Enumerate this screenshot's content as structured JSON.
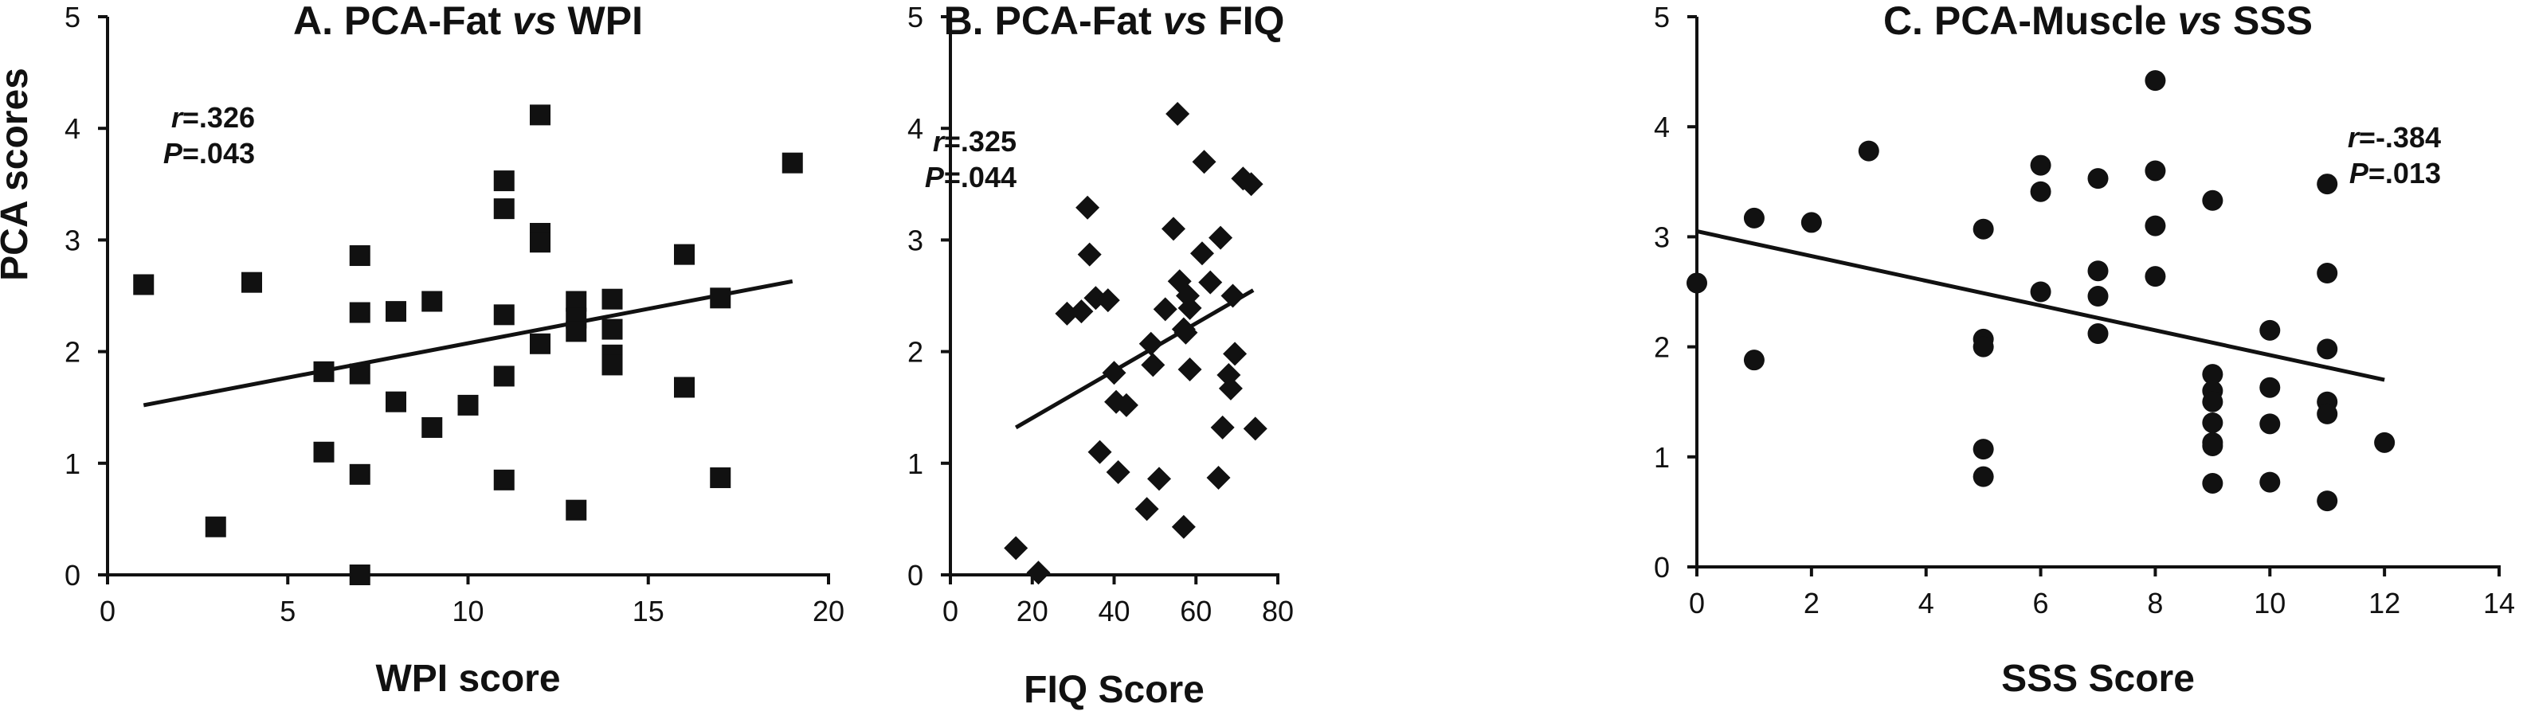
{
  "ylabel": "PCA scores",
  "chart_data": [
    {
      "type": "scatter",
      "title_parts": [
        "A. PCA-Fat ",
        "vs",
        " WPI"
      ],
      "xlabel": "WPI score",
      "ylabel": "PCA scores",
      "xlim": [
        0,
        20
      ],
      "ylim": [
        0,
        5
      ],
      "xticks": [
        0,
        5,
        10,
        15,
        20
      ],
      "yticks": [
        0,
        1,
        2,
        3,
        4,
        5
      ],
      "marker": "square",
      "stat_r_label": "r",
      "stat_r_value": "=.326",
      "stat_p_label": "P",
      "stat_p_value": "=.043",
      "fit_line": [
        [
          1,
          1.52
        ],
        [
          19,
          2.63
        ]
      ],
      "points": [
        [
          1,
          2.6
        ],
        [
          3,
          0.43
        ],
        [
          4,
          2.62
        ],
        [
          6,
          1.82
        ],
        [
          6,
          1.1
        ],
        [
          7,
          2.86
        ],
        [
          7,
          2.35
        ],
        [
          7,
          1.8
        ],
        [
          7,
          0.9
        ],
        [
          7,
          0.0
        ],
        [
          8,
          2.36
        ],
        [
          8,
          1.55
        ],
        [
          9,
          2.45
        ],
        [
          9,
          1.32
        ],
        [
          10,
          1.52
        ],
        [
          11,
          3.53
        ],
        [
          11,
          3.28
        ],
        [
          11,
          2.33
        ],
        [
          11,
          1.78
        ],
        [
          11,
          0.85
        ],
        [
          12,
          4.12
        ],
        [
          12,
          3.06
        ],
        [
          12,
          2.98
        ],
        [
          12,
          2.07
        ],
        [
          13,
          2.45
        ],
        [
          13,
          2.3
        ],
        [
          13,
          2.18
        ],
        [
          13,
          0.58
        ],
        [
          14,
          2.47
        ],
        [
          14,
          2.2
        ],
        [
          14,
          1.97
        ],
        [
          14,
          1.88
        ],
        [
          16,
          2.87
        ],
        [
          16,
          1.68
        ],
        [
          17,
          2.48
        ],
        [
          17,
          0.87
        ],
        [
          19,
          3.69
        ]
      ]
    },
    {
      "type": "scatter",
      "title_parts": [
        "B. PCA-Fat ",
        "vs",
        " FIQ"
      ],
      "xlabel": "FIQ Score",
      "ylabel": "",
      "xlim": [
        0,
        80
      ],
      "ylim": [
        0,
        5
      ],
      "xticks": [
        0,
        20,
        40,
        60,
        80
      ],
      "yticks": [
        0,
        1,
        2,
        3,
        4,
        5
      ],
      "marker": "diamond",
      "stat_r_label": "r",
      "stat_r_value": "=.325",
      "stat_p_label": "P",
      "stat_p_value": "=.044",
      "fit_line": [
        [
          16,
          1.32
        ],
        [
          74,
          2.55
        ]
      ],
      "points": [
        [
          16,
          0.24
        ],
        [
          21.5,
          0.02
        ],
        [
          28.5,
          2.34
        ],
        [
          32,
          2.36
        ],
        [
          33.5,
          3.29
        ],
        [
          34,
          2.87
        ],
        [
          35.5,
          2.48
        ],
        [
          36.5,
          1.1
        ],
        [
          38.5,
          2.46
        ],
        [
          40,
          1.81
        ],
        [
          40.5,
          1.55
        ],
        [
          41,
          0.92
        ],
        [
          43,
          1.52
        ],
        [
          48,
          0.59
        ],
        [
          49,
          2.07
        ],
        [
          49.5,
          1.88
        ],
        [
          51,
          0.86
        ],
        [
          52.5,
          2.38
        ],
        [
          54.5,
          3.1
        ],
        [
          55.5,
          4.13
        ],
        [
          56,
          2.63
        ],
        [
          57,
          2.2
        ],
        [
          57.5,
          2.17
        ],
        [
          57,
          0.43
        ],
        [
          58,
          2.5
        ],
        [
          58.5,
          2.39
        ],
        [
          58.5,
          1.84
        ],
        [
          61.5,
          2.88
        ],
        [
          62,
          3.7
        ],
        [
          63.5,
          2.62
        ],
        [
          65.5,
          0.87
        ],
        [
          66,
          3.02
        ],
        [
          66.5,
          1.32
        ],
        [
          68,
          1.79
        ],
        [
          68.5,
          1.67
        ],
        [
          69,
          2.5
        ],
        [
          69.5,
          1.98
        ],
        [
          71.5,
          3.55
        ],
        [
          73.5,
          3.5
        ],
        [
          74.5,
          1.31
        ]
      ]
    },
    {
      "type": "scatter",
      "title_parts": [
        "C. PCA-Muscle ",
        "vs",
        " SSS"
      ],
      "xlabel": "SSS Score",
      "ylabel": "",
      "xlim": [
        0,
        14
      ],
      "ylim": [
        0,
        5
      ],
      "xticks": [
        0,
        2,
        4,
        6,
        8,
        10,
        12,
        14
      ],
      "yticks": [
        0,
        1,
        2,
        3,
        4,
        5
      ],
      "marker": "circle",
      "stat_r_label": "r",
      "stat_r_value": "=-.384",
      "stat_p_label": "P",
      "stat_p_value": "=.013",
      "fit_line": [
        [
          0,
          3.05
        ],
        [
          12,
          1.7
        ]
      ],
      "points": [
        [
          0,
          2.58
        ],
        [
          1,
          3.17
        ],
        [
          1,
          1.88
        ],
        [
          2,
          3.13
        ],
        [
          3,
          3.78
        ],
        [
          5,
          3.07
        ],
        [
          5,
          2.07
        ],
        [
          5,
          2.0
        ],
        [
          5,
          1.07
        ],
        [
          5,
          0.82
        ],
        [
          6,
          3.65
        ],
        [
          6,
          3.41
        ],
        [
          6,
          2.5
        ],
        [
          7,
          3.53
        ],
        [
          7,
          2.69
        ],
        [
          7,
          2.46
        ],
        [
          7,
          2.12
        ],
        [
          8,
          4.42
        ],
        [
          8,
          3.6
        ],
        [
          8,
          3.1
        ],
        [
          8,
          2.64
        ],
        [
          9,
          3.33
        ],
        [
          9,
          1.75
        ],
        [
          9,
          1.6
        ],
        [
          9,
          1.5
        ],
        [
          9,
          1.31
        ],
        [
          9,
          1.13
        ],
        [
          9,
          1.1
        ],
        [
          9,
          0.76
        ],
        [
          10,
          2.15
        ],
        [
          10,
          1.63
        ],
        [
          10,
          1.3
        ],
        [
          10,
          0.77
        ],
        [
          11,
          3.48
        ],
        [
          11,
          2.67
        ],
        [
          11,
          1.98
        ],
        [
          11,
          1.5
        ],
        [
          11,
          1.39
        ],
        [
          11,
          0.6
        ],
        [
          12,
          1.13
        ]
      ]
    }
  ]
}
